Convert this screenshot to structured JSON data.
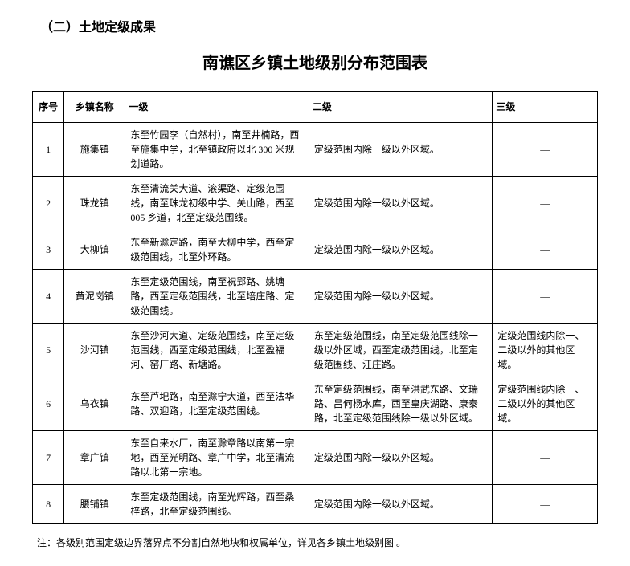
{
  "section_header": "（二）土地定级成果",
  "title": "南谯区乡镇土地级别分布范围表",
  "columns": {
    "num": "序号",
    "name": "乡镇名称",
    "lvl1": "一级",
    "lvl2": "二级",
    "lvl3": "三级"
  },
  "rows": [
    {
      "num": "1",
      "name": "施集镇",
      "lvl1": "东至竹园李（自然村），南至井楠路，西至施集中学，北至镇政府以北 300 米规划道路。",
      "lvl2": "定级范围内除一级以外区域。",
      "lvl3": "—"
    },
    {
      "num": "2",
      "name": "珠龙镇",
      "lvl1": "东至清流关大道、滚渠路、定级范围线，南至珠龙初级中学、关山路，西至 005 乡道，北至定级范围线。",
      "lvl2": "定级范围内除一级以外区域。",
      "lvl3": "—"
    },
    {
      "num": "3",
      "name": "大柳镇",
      "lvl1": "东至新滁定路，南至大柳中学，西至定级范围线，北至外环路。",
      "lvl2": "定级范围内除一级以外区域。",
      "lvl3": "—"
    },
    {
      "num": "4",
      "name": "黄泥岗镇",
      "lvl1": "东至定级范围线，南至祝郢路、姚塘路，西至定级范围线，北至培庄路、定级范围线。",
      "lvl2": "定级范围内除一级以外区域。",
      "lvl3": "—"
    },
    {
      "num": "5",
      "name": "沙河镇",
      "lvl1": "东至沙河大道、定级范围线，南至定级范围线，西至定级范围线，北至盈福河、窑厂路、新塘路。",
      "lvl2": "东至定级范围线，南至定级范围线除一级以外区域，西至定级范围线，北至定级范围线、汪庄路。",
      "lvl3": "定级范围线内除一、二级以外的其他区域。"
    },
    {
      "num": "6",
      "name": "乌衣镇",
      "lvl1": "东至芦圯路，南至滁宁大道，西至法华路、双迎路，北至定级范围线。",
      "lvl2": "东至定级范围线，南至洪武东路、文瑞路、吕何杨水库，西至皇庆湖路、康泰路，北至定级范围线除一级以外区域。",
      "lvl3": "定级范围线内除一、二级以外的其他区域。"
    },
    {
      "num": "7",
      "name": "章广镇",
      "lvl1": "东至自来水厂，南至滁章路以南第一宗地，西至光明路、章广中学，北至清流路以北第一宗地。",
      "lvl2": "定级范围内除一级以外区域。",
      "lvl3": "—"
    },
    {
      "num": "8",
      "name": "腰铺镇",
      "lvl1": "东至定级范围线，南至光辉路，西至桑梓路，北至定级范围线。",
      "lvl2": "定级范围内除一级以外区域。",
      "lvl3": "—"
    }
  ],
  "footnote": "注：各级别范围定级边界落界点不分割自然地块和权属单位，详见各乡镇土地级别图 。",
  "colors": {
    "text": "#000000",
    "background": "#ffffff",
    "border": "#000000"
  },
  "fonts": {
    "section_header_size": 16,
    "title_size": 20,
    "cell_size": 12,
    "footnote_size": 12
  }
}
